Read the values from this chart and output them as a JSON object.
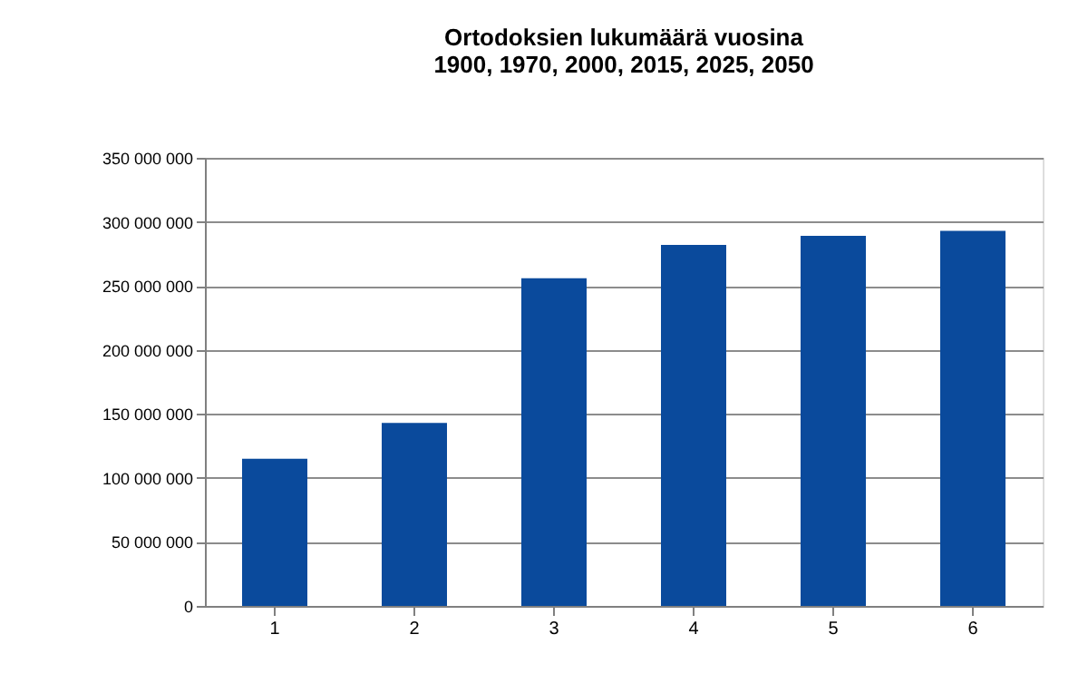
{
  "chart_data": {
    "type": "bar",
    "title": [
      "Ortodoksien lukumäärä vuosina",
      "1900, 1970, 2000, 2015, 2025, 2050"
    ],
    "categories": [
      "1",
      "2",
      "3",
      "4",
      "5",
      "6"
    ],
    "values": [
      115000000,
      143000000,
      256000000,
      282000000,
      289000000,
      293000000
    ],
    "color": "#0a4a9c",
    "ylim": [
      0,
      350000000
    ],
    "yticks": [
      0,
      {
        "value": 50000000,
        "label": "50 000 000"
      },
      {
        "value": 100000000,
        "label": "100 000 000"
      },
      {
        "value": 150000000,
        "label": "150 000 000"
      },
      {
        "value": 200000000,
        "label": "200 000 000"
      },
      {
        "value": 250000000,
        "label": "250 000 000"
      },
      {
        "value": 300000000,
        "label": "300 000 000"
      },
      {
        "value": 350000000,
        "label": "350 000 000"
      }
    ],
    "grid": "y"
  }
}
